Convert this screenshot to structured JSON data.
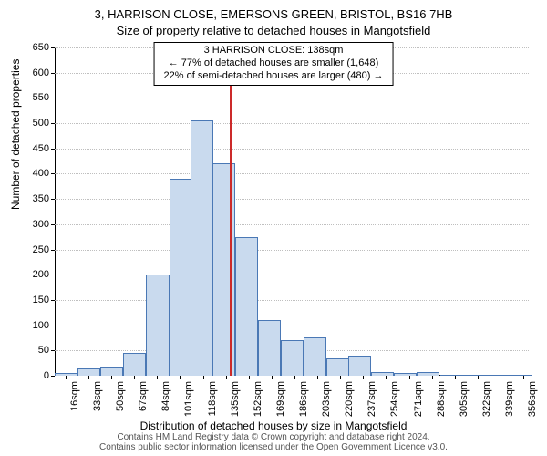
{
  "title_line1": "3, HARRISON CLOSE, EMERSONS GREEN, BRISTOL, BS16 7HB",
  "title_line2": "Size of property relative to detached houses in Mangotsfield",
  "annotation": {
    "line1": "3 HARRISON CLOSE: 138sqm",
    "line2": "← 77% of detached houses are smaller (1,648)",
    "line3": "22% of semi-detached houses are larger (480) →"
  },
  "y_axis_label": "Number of detached properties",
  "x_axis_label": "Distribution of detached houses by size in Mangotsfield",
  "footer_line1": "Contains HM Land Registry data © Crown copyright and database right 2024.",
  "footer_line2": "Contains public sector information licensed under the Open Government Licence v3.0.",
  "chart": {
    "type": "histogram",
    "bar_fill": "#c9daee",
    "bar_stroke": "#4a78b5",
    "grid_color": "#bfbfbf",
    "refline_color": "#cc2a2a",
    "refline_x": 138,
    "background_color": "#ffffff",
    "x_min": 8,
    "x_max": 360,
    "x_tick_start": 16,
    "x_tick_step": 17,
    "ylim": [
      0,
      650
    ],
    "y_ticks": [
      0,
      50,
      100,
      150,
      200,
      250,
      300,
      350,
      400,
      450,
      500,
      550,
      600,
      650
    ],
    "bin_width": 17,
    "bars": [
      {
        "x0": 8,
        "y": 5
      },
      {
        "x0": 25,
        "y": 15
      },
      {
        "x0": 42,
        "y": 18
      },
      {
        "x0": 59,
        "y": 45
      },
      {
        "x0": 76,
        "y": 200
      },
      {
        "x0": 93,
        "y": 390
      },
      {
        "x0": 109,
        "y": 505
      },
      {
        "x0": 125,
        "y": 420
      },
      {
        "x0": 142,
        "y": 275
      },
      {
        "x0": 159,
        "y": 110
      },
      {
        "x0": 176,
        "y": 70
      },
      {
        "x0": 193,
        "y": 75
      },
      {
        "x0": 210,
        "y": 35
      },
      {
        "x0": 226,
        "y": 40
      },
      {
        "x0": 243,
        "y": 8
      },
      {
        "x0": 260,
        "y": 5
      },
      {
        "x0": 277,
        "y": 8
      },
      {
        "x0": 294,
        "y": 2
      },
      {
        "x0": 311,
        "y": 2
      },
      {
        "x0": 328,
        "y": 2
      },
      {
        "x0": 345,
        "y": 2
      }
    ]
  }
}
